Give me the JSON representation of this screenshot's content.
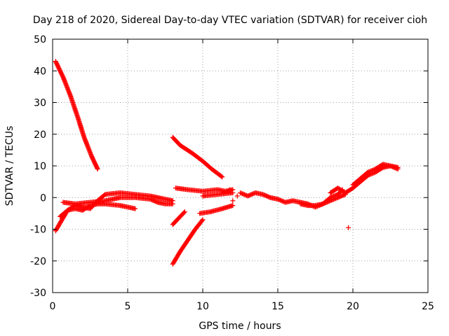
{
  "chart_data": {
    "type": "scatter",
    "title": "Day 218 of 2020, Sidereal Day-to-day VTEC variation (SDTVAR) for receiver cioh",
    "xlabel": "GPS time / hours",
    "ylabel": "SDTVAR / TECUs",
    "xlim": [
      0,
      25
    ],
    "ylim": [
      -30,
      50
    ],
    "xticks": [
      0,
      5,
      10,
      15,
      20,
      25
    ],
    "yticks": [
      -30,
      -20,
      -10,
      0,
      10,
      20,
      30,
      40,
      50
    ],
    "grid": true,
    "marker": "plus",
    "color": "#ff0000",
    "tracks": [
      {
        "name": "arc-high-decreasing",
        "points": [
          [
            0.2,
            43
          ],
          [
            0.7,
            38
          ],
          [
            1.2,
            32
          ],
          [
            1.7,
            25
          ],
          [
            2.1,
            19
          ],
          [
            2.6,
            13
          ],
          [
            3.0,
            9
          ]
        ]
      },
      {
        "name": "arc-low-rising",
        "points": [
          [
            0.2,
            -10.5
          ],
          [
            0.5,
            -8
          ],
          [
            1.0,
            -4
          ],
          [
            1.5,
            -2.5
          ],
          [
            2.0,
            -3
          ],
          [
            2.5,
            -3.5
          ],
          [
            3.0,
            -1
          ],
          [
            3.5,
            1
          ],
          [
            4.5,
            1.5
          ],
          [
            5.5,
            1
          ],
          [
            6.5,
            0.5
          ],
          [
            7.5,
            -0.5
          ],
          [
            8.0,
            -1
          ]
        ]
      },
      {
        "name": "arc-mid-low",
        "points": [
          [
            0.5,
            -6
          ],
          [
            1.0,
            -4
          ],
          [
            1.5,
            -3.5
          ],
          [
            2.0,
            -4
          ],
          [
            2.5,
            -2.5
          ],
          [
            3.0,
            -2
          ],
          [
            3.5,
            -2
          ],
          [
            4.5,
            -2.5
          ],
          [
            5.5,
            -3.5
          ]
        ]
      },
      {
        "name": "arc-mid-zero",
        "points": [
          [
            0.7,
            -1.5
          ],
          [
            1.5,
            -2
          ],
          [
            2.5,
            -1.5
          ],
          [
            3.5,
            -1
          ],
          [
            4.5,
            0
          ],
          [
            5.5,
            0
          ],
          [
            6.5,
            -0.5
          ],
          [
            7.0,
            -1.5
          ],
          [
            7.5,
            -2
          ],
          [
            8.0,
            -2
          ]
        ]
      },
      {
        "name": "arc-short-negative",
        "points": [
          [
            8.0,
            -8.5
          ],
          [
            8.4,
            -6.5
          ],
          [
            8.8,
            -4.5
          ]
        ]
      },
      {
        "name": "arc-steep-rising",
        "points": [
          [
            8.0,
            -21
          ],
          [
            8.5,
            -17
          ],
          [
            9.0,
            -13.5
          ],
          [
            9.5,
            -10
          ],
          [
            10.0,
            -7
          ]
        ]
      },
      {
        "name": "arc-upper-decreasing",
        "points": [
          [
            8.0,
            19
          ],
          [
            8.5,
            16.5
          ],
          [
            9.3,
            14
          ],
          [
            10.0,
            11.5
          ],
          [
            10.6,
            9
          ],
          [
            11.3,
            6.5
          ]
        ]
      },
      {
        "name": "arc-flat-three",
        "points": [
          [
            8.2,
            3
          ],
          [
            9.0,
            2.5
          ],
          [
            10.0,
            2
          ],
          [
            11.0,
            2.5
          ],
          [
            11.5,
            2
          ],
          [
            12.0,
            2.5
          ]
        ]
      },
      {
        "name": "arc-near-zero-short",
        "points": [
          [
            10.0,
            0.5
          ],
          [
            11.0,
            1
          ],
          [
            12.0,
            1.5
          ]
        ]
      },
      {
        "name": "arc-low-flat",
        "points": [
          [
            9.8,
            -5
          ],
          [
            10.5,
            -4.5
          ],
          [
            11.3,
            -3.5
          ],
          [
            12.0,
            -2.5
          ]
        ]
      },
      {
        "name": "arc-midday-wave",
        "points": [
          [
            12.5,
            1.5
          ],
          [
            13.0,
            0.5
          ],
          [
            13.5,
            1.5
          ],
          [
            14.0,
            1
          ],
          [
            14.5,
            0
          ],
          [
            15.0,
            -0.5
          ],
          [
            15.5,
            -1.5
          ],
          [
            16.0,
            -1
          ],
          [
            16.5,
            -1.5
          ],
          [
            17.0,
            -2
          ],
          [
            17.5,
            -3
          ],
          [
            18.0,
            -2
          ],
          [
            18.5,
            0
          ],
          [
            19.0,
            1
          ],
          [
            19.3,
            2.5
          ]
        ]
      },
      {
        "name": "arc-evening-low",
        "points": [
          [
            16.5,
            -2
          ],
          [
            17.0,
            -2.5
          ],
          [
            17.5,
            -2.5
          ],
          [
            18.0,
            -2
          ],
          [
            18.5,
            -1
          ],
          [
            19.0,
            0
          ],
          [
            19.5,
            1
          ]
        ]
      },
      {
        "name": "arc-evening-rise",
        "points": [
          [
            18.5,
            1.5
          ],
          [
            19.0,
            3
          ],
          [
            19.5,
            1.5
          ],
          [
            20.0,
            3
          ],
          [
            20.5,
            5
          ],
          [
            21.0,
            7
          ],
          [
            21.5,
            8
          ],
          [
            22.0,
            9.5
          ],
          [
            22.5,
            10
          ],
          [
            23.0,
            9
          ]
        ]
      },
      {
        "name": "arc-evening-rise-2",
        "points": [
          [
            20.0,
            4
          ],
          [
            20.5,
            6
          ],
          [
            21.0,
            8
          ],
          [
            21.5,
            9
          ],
          [
            22.0,
            10.5
          ],
          [
            22.5,
            10
          ],
          [
            23.0,
            9.5
          ]
        ]
      },
      {
        "name": "isolated-points",
        "points": [
          [
            12.0,
            -1
          ],
          [
            19.7,
            -9.5
          ],
          [
            12.3,
            0.5
          ],
          [
            11.8,
            2.5
          ]
        ]
      }
    ]
  }
}
